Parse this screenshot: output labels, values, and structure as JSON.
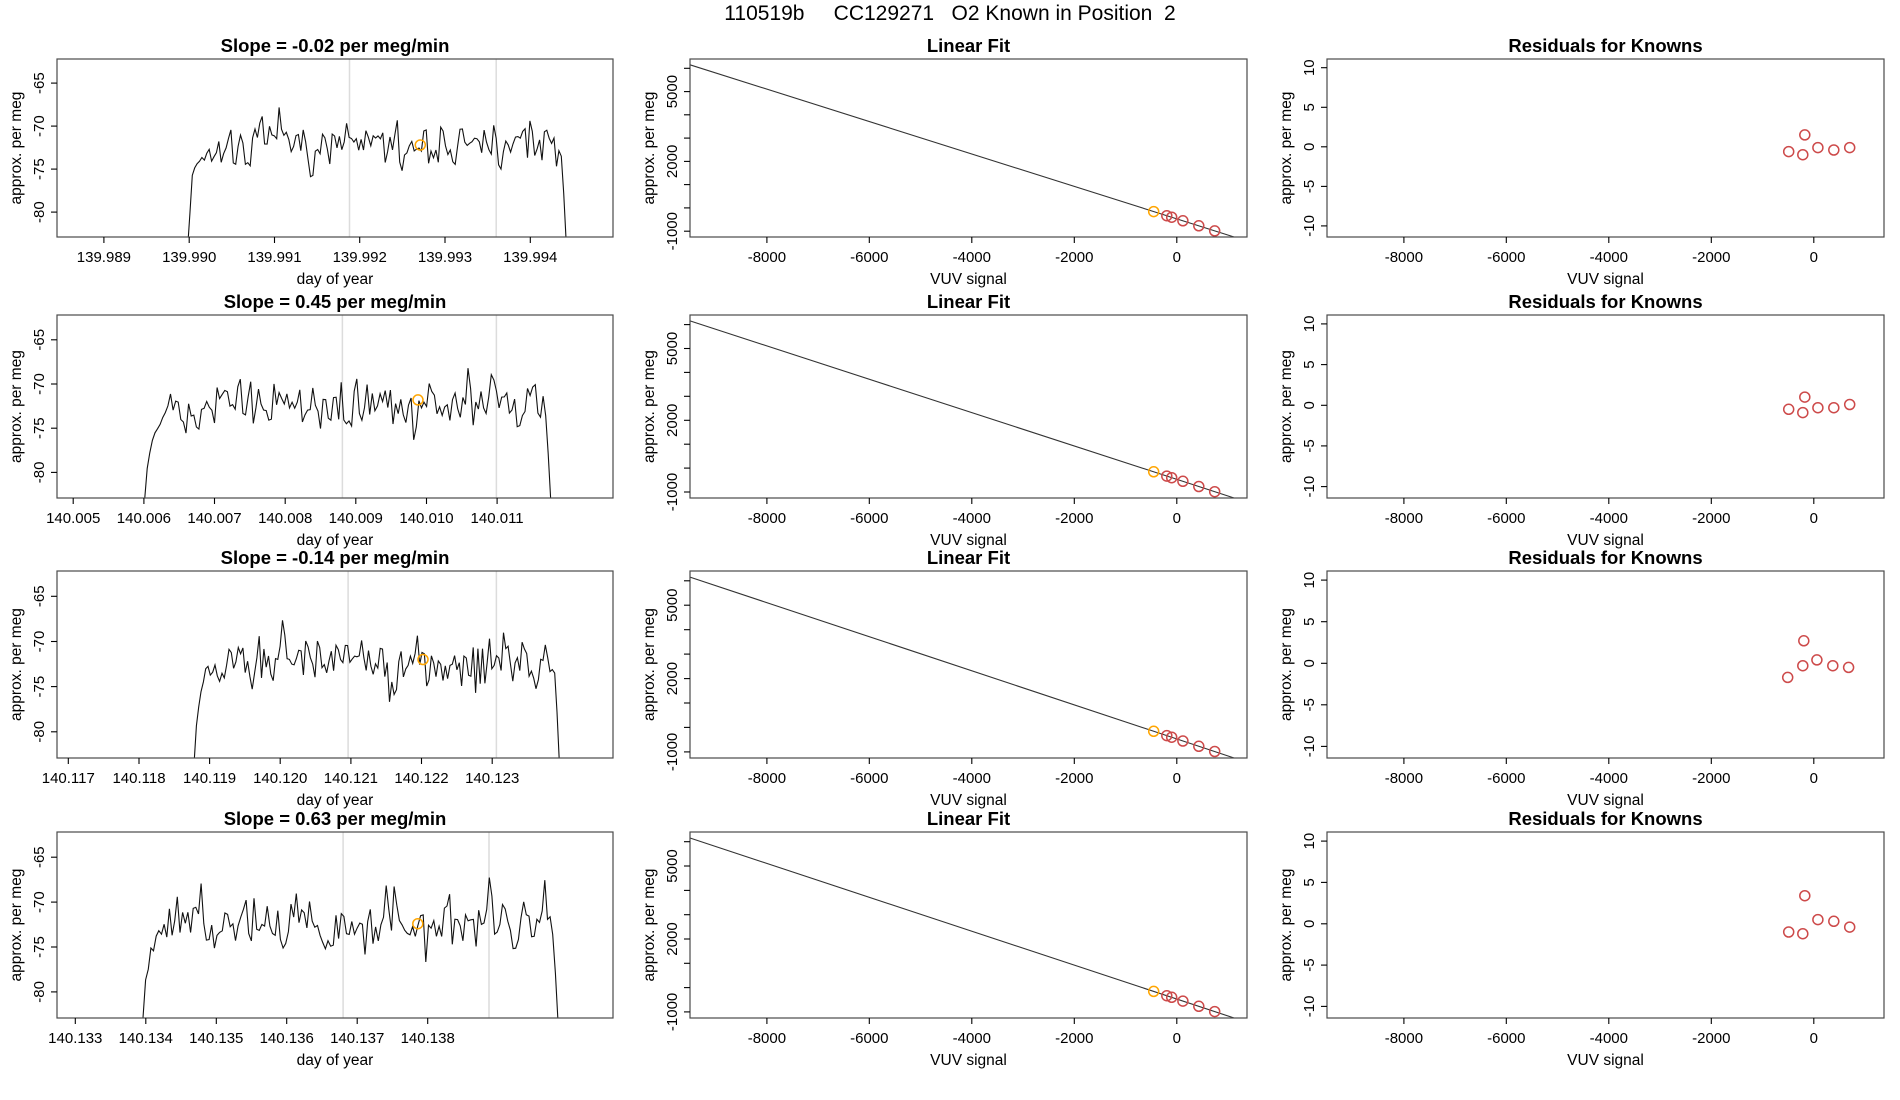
{
  "title": "110519b     CC129271   O2 Known in Position  2",
  "colors": {
    "signal": "#111111",
    "fit_line": "#333333",
    "known_point": "#cd4a4a",
    "sample_marker": "#ffa500",
    "gridline": "#dcdcdc",
    "box": "#4a4a4a",
    "text": "#000000"
  },
  "shared_axes": {
    "vuv_xticks": [
      {
        "v": -8000,
        "label": "-8000"
      },
      {
        "v": -6000,
        "label": "-6000"
      },
      {
        "v": -4000,
        "label": "-4000"
      },
      {
        "v": -2000,
        "label": "-2000"
      },
      {
        "v": 0,
        "label": "0"
      }
    ],
    "vuv_xlim": [
      -9500,
      1370
    ],
    "meg_yticks": [
      {
        "v": -65,
        "label": "-65"
      },
      {
        "v": -70,
        "label": "-70"
      },
      {
        "v": -75,
        "label": "-75"
      },
      {
        "v": -80,
        "label": "-80"
      }
    ],
    "meg_ylim": [
      -82.9,
      -62.2
    ],
    "fit_yticks": [
      {
        "v": -1000,
        "label": "-1000"
      },
      {
        "v": 0
      },
      {
        "v": 1000
      },
      {
        "v": 2000,
        "label": "2000"
      },
      {
        "v": 3000
      },
      {
        "v": 4000
      },
      {
        "v": 5000,
        "label": "5000"
      },
      {
        "v": 6000
      }
    ],
    "fit_ylim": [
      -1250,
      6400
    ],
    "res_yticks": [
      {
        "v": 10,
        "label": "10"
      },
      {
        "v": 5,
        "label": "5"
      },
      {
        "v": 0,
        "label": "0"
      },
      {
        "v": -5,
        "label": "-5"
      },
      {
        "v": -10,
        "label": "-10"
      }
    ],
    "res_ylim": [
      -11.4,
      11.1
    ],
    "xlabel_time": "day of year",
    "xlabel_vuv": "VUV signal",
    "ylabel": "approx. per meg"
  },
  "chart_data": [
    {
      "timeseries": {
        "type": "line",
        "title": "Slope =  -0.02  per meg/min",
        "slope": -0.02,
        "xticks": [
          {
            "v": 139.989,
            "label": "139.989"
          },
          {
            "v": 139.99,
            "label": "139.990"
          },
          {
            "v": 139.991,
            "label": "139.991"
          },
          {
            "v": 139.992,
            "label": "139.992"
          },
          {
            "v": 139.993,
            "label": "139.993"
          },
          {
            "v": 139.994,
            "label": "139.994"
          }
        ],
        "xlim": [
          139.98845,
          139.99497
        ],
        "grid_x": [
          139.99188,
          139.9936
        ],
        "signal": {
          "x_start": 139.98998,
          "x_end": 139.99442,
          "mean": -72.3,
          "amp": 2.3,
          "seed": 7
        },
        "marker": {
          "x": 139.99271,
          "y": -72.2
        }
      },
      "linear_fit": {
        "type": "scatter+line",
        "title": "Linear Fit",
        "fit": {
          "slope": -0.697,
          "intercept": -470
        },
        "knowns": [
          {
            "x": -450,
            "color": "orange"
          },
          {
            "x": -195
          },
          {
            "x": -100
          },
          {
            "x": 120
          },
          {
            "x": 430
          },
          {
            "x": 740
          }
        ]
      },
      "residuals": {
        "type": "scatter",
        "title": "Residuals for Knowns",
        "points": [
          {
            "x": -490,
            "y": -0.6
          },
          {
            "x": -215,
            "y": -1.0
          },
          {
            "x": -175,
            "y": 1.5
          },
          {
            "x": 80,
            "y": -0.1
          },
          {
            "x": 390,
            "y": -0.4
          },
          {
            "x": 700,
            "y": -0.1
          }
        ]
      }
    },
    {
      "timeseries": {
        "type": "line",
        "title": "Slope =  0.45  per meg/min",
        "slope": 0.45,
        "xticks": [
          {
            "v": 140.005,
            "label": "140.005"
          },
          {
            "v": 140.006,
            "label": "140.006"
          },
          {
            "v": 140.007,
            "label": "140.007"
          },
          {
            "v": 140.008,
            "label": "140.008"
          },
          {
            "v": 140.009,
            "label": "140.009"
          },
          {
            "v": 140.01,
            "label": "140.010"
          },
          {
            "v": 140.011,
            "label": "140.011"
          }
        ],
        "xlim": [
          140.00477,
          140.01264
        ],
        "grid_x": [
          140.00881,
          140.01099
        ],
        "signal": {
          "x_start": 140.00601,
          "x_end": 140.01176,
          "mean": -72.4,
          "amp": 2.3,
          "seed": 13
        },
        "marker": {
          "x": 140.00988,
          "y": -71.8
        }
      },
      "linear_fit": {
        "type": "scatter+line",
        "title": "Linear Fit",
        "fit": {
          "slope": -0.697,
          "intercept": -470
        },
        "knowns": [
          {
            "x": -450,
            "color": "orange"
          },
          {
            "x": -195
          },
          {
            "x": -100
          },
          {
            "x": 120
          },
          {
            "x": 430
          },
          {
            "x": 740
          }
        ]
      },
      "residuals": {
        "type": "scatter",
        "title": "Residuals for Knowns",
        "points": [
          {
            "x": -490,
            "y": -0.5
          },
          {
            "x": -215,
            "y": -0.9
          },
          {
            "x": -175,
            "y": 1.0
          },
          {
            "x": 80,
            "y": -0.3
          },
          {
            "x": 390,
            "y": -0.3
          },
          {
            "x": 700,
            "y": 0.1
          }
        ]
      }
    },
    {
      "timeseries": {
        "type": "line",
        "title": "Slope =  -0.14  per meg/min",
        "slope": -0.14,
        "xticks": [
          {
            "v": 140.117,
            "label": "140.117"
          },
          {
            "v": 140.118,
            "label": "140.118"
          },
          {
            "v": 140.119,
            "label": "140.119"
          },
          {
            "v": 140.12,
            "label": "140.120"
          },
          {
            "v": 140.121,
            "label": "140.121"
          },
          {
            "v": 140.122,
            "label": "140.122"
          },
          {
            "v": 140.123,
            "label": "140.123"
          }
        ],
        "xlim": [
          140.11684,
          140.12471
        ],
        "grid_x": [
          140.12096,
          140.12306
        ],
        "signal": {
          "x_start": 140.11878,
          "x_end": 140.12395,
          "mean": -72.3,
          "amp": 2.4,
          "seed": 21
        },
        "marker": {
          "x": 140.12202,
          "y": -72.0
        }
      },
      "linear_fit": {
        "type": "scatter+line",
        "title": "Linear Fit",
        "fit": {
          "slope": -0.697,
          "intercept": -470
        },
        "knowns": [
          {
            "x": -450,
            "color": "orange"
          },
          {
            "x": -195
          },
          {
            "x": -100
          },
          {
            "x": 120
          },
          {
            "x": 430
          },
          {
            "x": 740
          }
        ]
      },
      "residuals": {
        "type": "scatter",
        "title": "Residuals for Knowns",
        "points": [
          {
            "x": -510,
            "y": -1.7
          },
          {
            "x": -215,
            "y": -0.3
          },
          {
            "x": -195,
            "y": 2.7
          },
          {
            "x": 60,
            "y": 0.4
          },
          {
            "x": 370,
            "y": -0.3
          },
          {
            "x": 680,
            "y": -0.5
          }
        ]
      }
    },
    {
      "timeseries": {
        "type": "line",
        "title": "Slope =  0.63  per meg/min",
        "slope": 0.63,
        "xticks": [
          {
            "v": 140.133,
            "label": "140.133"
          },
          {
            "v": 140.134,
            "label": "140.134"
          },
          {
            "v": 140.135,
            "label": "140.135"
          },
          {
            "v": 140.136,
            "label": "140.136"
          },
          {
            "v": 140.137,
            "label": "140.137"
          },
          {
            "v": 140.138,
            "label": "140.138"
          }
        ],
        "xlim": [
          140.13274,
          140.14063
        ],
        "grid_x": [
          140.1368,
          140.13887
        ],
        "signal": {
          "x_start": 140.13396,
          "x_end": 140.13985,
          "mean": -72.4,
          "amp": 2.4,
          "seed": 5
        },
        "marker": {
          "x": 140.13786,
          "y": -72.4
        }
      },
      "linear_fit": {
        "type": "scatter+line",
        "title": "Linear Fit",
        "fit": {
          "slope": -0.697,
          "intercept": -470
        },
        "knowns": [
          {
            "x": -450,
            "color": "orange"
          },
          {
            "x": -195
          },
          {
            "x": -100
          },
          {
            "x": 120
          },
          {
            "x": 430
          },
          {
            "x": 740
          }
        ]
      },
      "residuals": {
        "type": "scatter",
        "title": "Residuals for Knowns",
        "points": [
          {
            "x": -490,
            "y": -1.0
          },
          {
            "x": -215,
            "y": -1.2
          },
          {
            "x": -175,
            "y": 3.4
          },
          {
            "x": 80,
            "y": 0.5
          },
          {
            "x": 390,
            "y": 0.3
          },
          {
            "x": 700,
            "y": -0.4
          }
        ]
      }
    }
  ]
}
